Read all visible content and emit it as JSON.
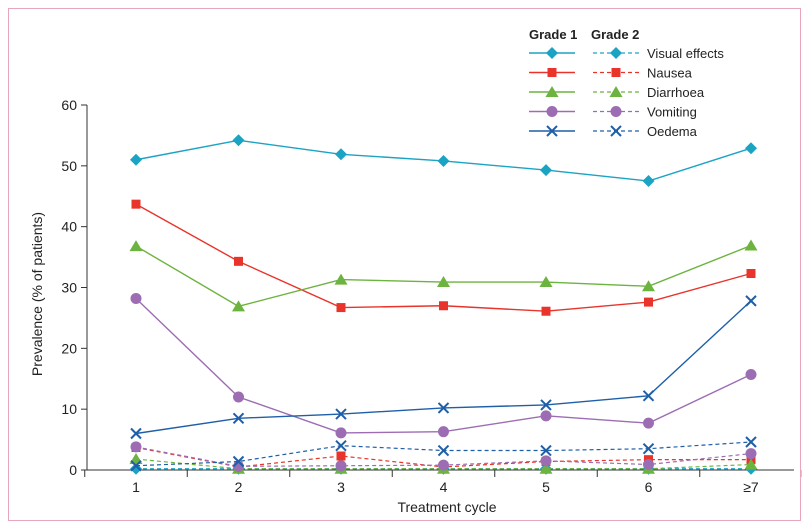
{
  "chart_data": {
    "type": "line",
    "xlabel": "Treatment cycle",
    "ylabel": "Prevalence (% of patients)",
    "categories": [
      "1",
      "2",
      "3",
      "4",
      "5",
      "6",
      "≥7"
    ],
    "ylim": [
      0,
      60
    ],
    "yticks": [
      0,
      10,
      20,
      30,
      40,
      50,
      60
    ],
    "grid": false,
    "legend": {
      "placement": "top-right",
      "grade1_header": "Grade 1",
      "grade2_header": "Grade 2"
    },
    "series": [
      {
        "name": "Visual effects",
        "color": "#1ba3c4",
        "marker": "diamond",
        "grade1": [
          51,
          54.2,
          51.9,
          50.8,
          49.3,
          47.5,
          52.9
        ],
        "grade2": [
          0.2,
          0.2,
          0.2,
          0.2,
          0.2,
          0.2,
          0.2
        ]
      },
      {
        "name": "Nausea",
        "color": "#e8342b",
        "marker": "square",
        "grade1": [
          43.7,
          34.3,
          26.7,
          27,
          26.1,
          27.6,
          32.3
        ],
        "grade2": [
          3.7,
          0.5,
          2.3,
          0.5,
          1.4,
          1.7,
          1.7
        ]
      },
      {
        "name": "Diarrhoea",
        "color": "#6db33f",
        "marker": "triangle",
        "grade1": [
          36.8,
          26.9,
          31.3,
          30.9,
          30.9,
          30.2,
          36.9
        ],
        "grade2": [
          1.8,
          0.2,
          0.2,
          0.2,
          0.2,
          0.2,
          0.9
        ]
      },
      {
        "name": "Vomiting",
        "color": "#9c6db3",
        "marker": "circle",
        "grade1": [
          28.2,
          12,
          6.1,
          6.3,
          8.9,
          7.7,
          15.7
        ],
        "grade2": [
          3.8,
          0.6,
          0.7,
          0.8,
          1.5,
          0.9,
          2.7
        ]
      },
      {
        "name": "Oedema",
        "color": "#1f5fa8",
        "marker": "x",
        "grade1": [
          6,
          8.5,
          9.2,
          10.2,
          10.7,
          12.2,
          27.8
        ],
        "grade2": [
          0.7,
          1.4,
          4,
          3.2,
          3.2,
          3.5,
          4.6
        ]
      }
    ]
  }
}
